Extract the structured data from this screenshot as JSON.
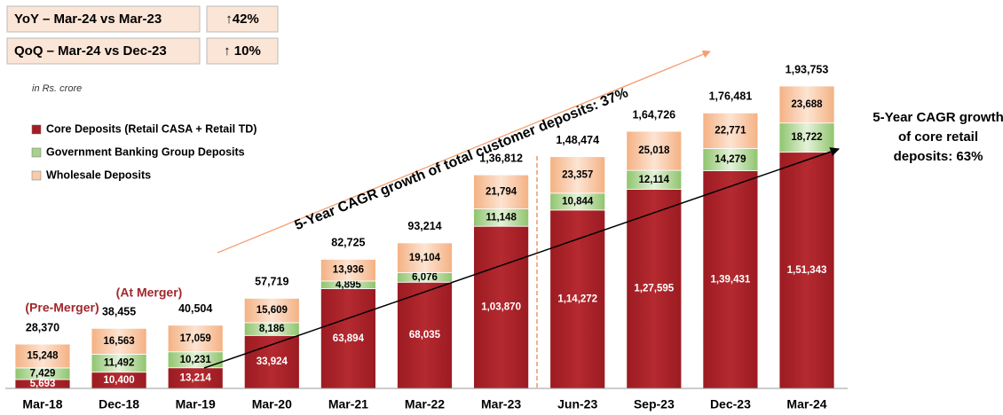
{
  "chart_data": {
    "type": "stacked_bar",
    "summary_boxes": [
      {
        "label": "YoY – Mar-24 vs Mar-23",
        "value": "↑42%"
      },
      {
        "label": "QoQ – Mar-24 vs Dec-23",
        "value": "↑ 10%"
      }
    ],
    "unit_note": "in Rs. crore",
    "categories": [
      "Mar-18",
      "Dec-18",
      "Mar-19",
      "Mar-20",
      "Mar-21",
      "Mar-22",
      "Mar-23",
      "Jun-23",
      "Sep-23",
      "Dec-23",
      "Mar-24"
    ],
    "series": [
      {
        "name": "Core Deposits (Retail CASA + Retail TD)",
        "color": "#a51c24",
        "values": [
          5693,
          10400,
          13214,
          33924,
          63894,
          68035,
          103870,
          114272,
          127595,
          139431,
          151343
        ],
        "value_labels": [
          "5,693",
          "10,400",
          "13,214",
          "33,924",
          "63,894",
          "68,035",
          "1,03,870",
          "1,14,272",
          "1,27,595",
          "1,39,431",
          "1,51,343"
        ]
      },
      {
        "name": "Government Banking Group Deposits",
        "color": "#a9d18e",
        "values": [
          7429,
          11492,
          10231,
          8186,
          4895,
          6076,
          11148,
          10844,
          12114,
          14279,
          18722
        ],
        "value_labels": [
          "7,429",
          "11,492",
          "10,231",
          "8,186",
          "4,895",
          "6,076",
          "11,148",
          "10,844",
          "12,114",
          "14,279",
          "18,722"
        ]
      },
      {
        "name": "Wholesale Deposits",
        "color": "#f8cbad",
        "values": [
          15248,
          16563,
          17059,
          15609,
          13936,
          19104,
          21794,
          23357,
          25018,
          22771,
          23688
        ],
        "value_labels": [
          "15,248",
          "16,563",
          "17,059",
          "15,609",
          "13,936",
          "19,104",
          "21,794",
          "23,357",
          "25,018",
          "22,771",
          "23,688"
        ]
      }
    ],
    "totals": {
      "values": [
        28370,
        38455,
        40504,
        57719,
        82725,
        93214,
        136812,
        148474,
        164726,
        176481,
        193753
      ],
      "value_labels": [
        "28,370",
        "38,455",
        "40,504",
        "57,719",
        "82,725",
        "93,214",
        "1,36,812",
        "1,48,474",
        "1,64,726",
        "1,76,481",
        "1,93,753"
      ]
    },
    "annotations": [
      "(Pre-Merger)",
      "(At Merger)",
      "5-Year CAGR growth of total customer deposits: 37%"
    ],
    "core_cagr_lines": [
      "5-Year CAGR growth",
      "of core retail",
      "deposits: 63%"
    ]
  }
}
